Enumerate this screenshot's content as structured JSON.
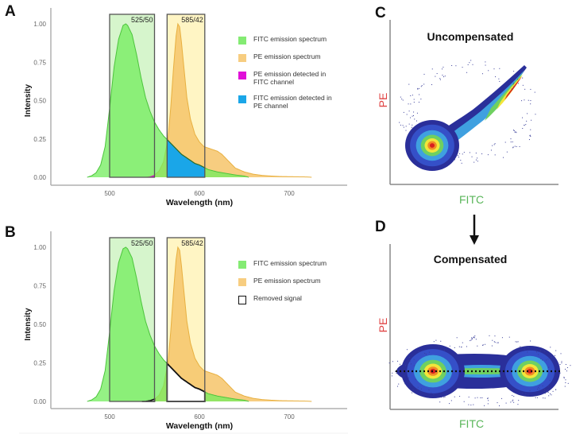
{
  "panels": {
    "A": {
      "letter": "A"
    },
    "B": {
      "letter": "B"
    },
    "C": {
      "letter": "C",
      "title": "Uncompensated",
      "xlabel": "FITC",
      "ylabel": "PE"
    },
    "D": {
      "letter": "D",
      "title": "Compensated",
      "xlabel": "FITC",
      "ylabel": "PE"
    }
  },
  "colors": {
    "fitc": "#6ee85a",
    "fitc_fill": "#72ec5c",
    "fitc_line": "#4cc43c",
    "pe": "#f6c46a",
    "pe_line": "#e8b040",
    "magenta": "#e010d8",
    "blue": "#1aa6e8",
    "filter_fitc_bg": "#d6f5cc",
    "filter_pe_bg": "#fff5c4",
    "fitc_label": "#5ab65a",
    "pe_label": "#e04444"
  },
  "legend_A": [
    {
      "label": "FITC emission spectrum",
      "swatch": "fitc"
    },
    {
      "label": "PE emission spectrum",
      "swatch": "pe"
    },
    {
      "label": "PE emission detected in FITC channel",
      "swatch": "magenta"
    },
    {
      "label": "FITC emission detected in PE channel",
      "swatch": "blue"
    }
  ],
  "legend_B": [
    {
      "label": "FITC emission spectrum",
      "swatch": "fitc"
    },
    {
      "label": "PE emission spectrum",
      "swatch": "pe"
    },
    {
      "label": "Removed signal",
      "swatch": "outline"
    }
  ],
  "chart_data": [
    {
      "type": "area",
      "panel": "A",
      "xlabel": "Wavelength (nm)",
      "ylabel": "Intensity",
      "xlim": [
        435,
        765
      ],
      "ylim": [
        0,
        1.05
      ],
      "xticks": [
        500,
        600,
        700
      ],
      "yticks": [
        "0.00",
        "0.25",
        "0.50",
        "0.75",
        "1.00"
      ],
      "filters": [
        {
          "label": "525/50",
          "range": [
            500,
            550
          ]
        },
        {
          "label": "585/42",
          "range": [
            564,
            606
          ]
        }
      ],
      "series": [
        {
          "name": "FITC emission spectrum",
          "x": [
            475,
            480,
            485,
            490,
            495,
            500,
            505,
            510,
            515,
            518,
            520,
            525,
            530,
            535,
            540,
            545,
            550,
            555,
            560,
            565,
            570,
            575,
            580,
            585,
            590,
            595,
            600,
            605,
            610,
            620,
            630,
            640,
            650,
            655
          ],
          "y": [
            0,
            0.01,
            0.03,
            0.08,
            0.2,
            0.45,
            0.72,
            0.9,
            0.99,
            1.0,
            0.99,
            0.93,
            0.8,
            0.65,
            0.52,
            0.43,
            0.36,
            0.31,
            0.27,
            0.24,
            0.21,
            0.18,
            0.15,
            0.13,
            0.11,
            0.09,
            0.08,
            0.065,
            0.05,
            0.035,
            0.025,
            0.015,
            0.008,
            0
          ]
        },
        {
          "name": "PE emission spectrum",
          "x": [
            540,
            545,
            550,
            555,
            560,
            565,
            568,
            571,
            574,
            576,
            578,
            580,
            583,
            586,
            590,
            595,
            600,
            605,
            610,
            615,
            620,
            625,
            630,
            635,
            640,
            650,
            660,
            670,
            680,
            690,
            700,
            710,
            720,
            725
          ],
          "y": [
            0,
            0.005,
            0.015,
            0.04,
            0.1,
            0.25,
            0.45,
            0.7,
            0.92,
            1.0,
            0.98,
            0.88,
            0.7,
            0.52,
            0.38,
            0.28,
            0.23,
            0.2,
            0.19,
            0.18,
            0.17,
            0.15,
            0.12,
            0.09,
            0.06,
            0.035,
            0.02,
            0.012,
            0.008,
            0.005,
            0.004,
            0.003,
            0.002,
            0
          ]
        }
      ]
    },
    {
      "type": "area",
      "panel": "B",
      "xlabel": "Wavelength (nm)",
      "ylabel": "Intensity",
      "xlim": [
        435,
        765
      ],
      "ylim": [
        0,
        1.05
      ],
      "xticks": [
        500,
        600,
        700
      ],
      "yticks": [
        "0.00",
        "0.25",
        "0.50",
        "0.75",
        "1.00"
      ],
      "filters": [
        {
          "label": "525/50",
          "range": [
            500,
            550
          ]
        },
        {
          "label": "585/42",
          "range": [
            564,
            606
          ]
        }
      ],
      "series": [
        {
          "name": "FITC emission spectrum"
        },
        {
          "name": "PE emission spectrum"
        }
      ],
      "removed_signal": true
    }
  ]
}
